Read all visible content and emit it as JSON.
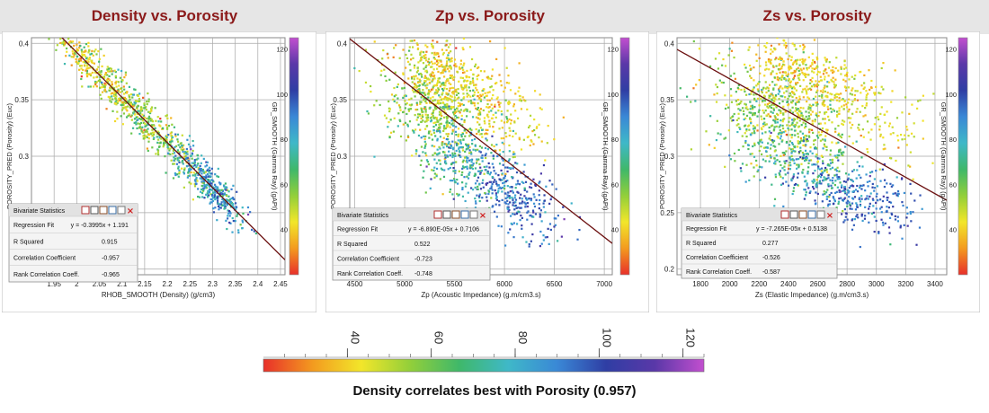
{
  "colors": {
    "regression_line": "#6b0f0f",
    "grid": "#9a9a9a",
    "title": "#8b1a1a"
  },
  "colorbar": {
    "stops": [
      "#e8302a",
      "#f39a1f",
      "#f2e62a",
      "#92cf3a",
      "#3fb86a",
      "#3fb8c8",
      "#3a88d6",
      "#2f3ea4",
      "#5a38a8",
      "#c24fcf"
    ],
    "ticks": [
      40,
      60,
      80,
      100,
      120
    ],
    "min": 20,
    "max": 125
  },
  "stats_toolbar_icons": [
    "print-icon",
    "bar-chart-icon",
    "fit-icon",
    "scatter-icon",
    "copy-icon",
    "close-icon"
  ],
  "footer_caption": "Density correlates best with Porosity (0.957)",
  "panels": [
    {
      "title": "Density vs. Porosity",
      "xlabel": "RHOB_SMOOTH (Density) (g/cm3)",
      "ylabel": "POROSITY_PRED (Porosity) (Euc)",
      "cblabel": "GR_SMOOTH (Gamma Ray) (gAPI)",
      "stats": {
        "header": "Bivariate Statistics",
        "rows": [
          {
            "label": "Regression Fit",
            "value": "y = -0.3995x + 1.191"
          },
          {
            "label": "R Squared",
            "value": "0.915"
          },
          {
            "label": "Correlation Coefficient",
            "value": "-0.957"
          },
          {
            "label": "Rank Correlation Coeff.",
            "value": "-0.965"
          }
        ]
      }
    },
    {
      "title": "Zp vs. Porosity",
      "xlabel": "Zp (Acoustic Impedance) (g.m/cm3.s)",
      "ylabel": "POROSITY_PRED (Porosity) (Euc)",
      "cblabel": "GR_SMOOTH (Gamma Ray) (gAPI)",
      "stats": {
        "header": "Bivariate Statistics",
        "rows": [
          {
            "label": "Regression Fit",
            "value": "y = -6.890E-05x + 0.7106"
          },
          {
            "label": "R Squared",
            "value": "0.522"
          },
          {
            "label": "Correlation Coefficient",
            "value": "-0.723"
          },
          {
            "label": "Rank Correlation Coeff.",
            "value": "-0.748"
          }
        ]
      }
    },
    {
      "title": "Zs vs. Porosity",
      "xlabel": "Zs (Elastic Impedance) (g.m/cm3.s)",
      "ylabel": "POROSITY_PRED (Porosity) (Euc)",
      "cblabel": "GR_SMOOTH (Gamma Ray) (gAPI)",
      "stats": {
        "header": "Bivariate Statistics",
        "rows": [
          {
            "label": "Regression Fit",
            "value": "y = -7.265E-05x + 0.5138"
          },
          {
            "label": "R Squared",
            "value": "0.277"
          },
          {
            "label": "Correlation Coefficient",
            "value": "-0.526"
          },
          {
            "label": "Rank Correlation Coeff.",
            "value": "-0.587"
          }
        ]
      }
    }
  ],
  "chart_data": [
    {
      "type": "scatter",
      "title": "Density vs. Porosity",
      "xlabel": "RHOB_SMOOTH (Density) (g/cm3)",
      "ylabel": "POROSITY_PRED (Porosity) (Euc)",
      "xlim": [
        1.9,
        2.46
      ],
      "ylim": [
        0.195,
        0.405
      ],
      "xticks": [
        1.95,
        2.0,
        2.05,
        2.1,
        2.15,
        2.2,
        2.25,
        2.3,
        2.35,
        2.4,
        2.45
      ],
      "xtick_labels": [
        "1.95",
        "2",
        "2.05",
        "2.1",
        "2.15",
        "2.2",
        "2.25",
        "2.3",
        "2.35",
        "2.4",
        "2.45"
      ],
      "yticks": [
        0.2,
        0.25,
        0.3,
        0.35,
        0.4
      ],
      "ytick_labels": [
        "0.2",
        "0.25",
        "0.3",
        "0.35",
        "0.4"
      ],
      "color_by": "GR_SMOOTH (Gamma Ray) (gAPI)",
      "color_range": [
        20,
        125
      ],
      "colorbar_ticks": [
        40,
        60,
        80,
        100,
        120
      ],
      "regression": {
        "slope": -0.3995,
        "intercept": 1.191
      },
      "point_clouds": [
        {
          "x_mean": 2.14,
          "x_sd": 0.08,
          "y_sd": 0.011,
          "gr_mean": 55,
          "gr_sd": 12,
          "n": 600
        },
        {
          "x_mean": 2.3,
          "x_sd": 0.04,
          "y_sd": 0.009,
          "gr_mean": 85,
          "gr_sd": 10,
          "n": 350
        },
        {
          "x_mean": 2.03,
          "x_sd": 0.05,
          "y_sd": 0.008,
          "gr_mean": 40,
          "gr_sd": 6,
          "n": 150
        }
      ],
      "r_squared": 0.915,
      "correlation": -0.957,
      "rank_correlation": -0.965
    },
    {
      "type": "scatter",
      "title": "Zp vs. Porosity",
      "xlabel": "Zp (Acoustic Impedance) (g.m/cm3.s)",
      "ylabel": "POROSITY_PRED (Porosity) (Euc)",
      "xlim": [
        4450,
        7080
      ],
      "ylim": [
        0.195,
        0.405
      ],
      "xticks": [
        4500,
        5000,
        5500,
        6000,
        6500,
        7000
      ],
      "xtick_labels": [
        "4500",
        "5000",
        "5500",
        "6000",
        "6500",
        "7000"
      ],
      "yticks": [
        0.2,
        0.25,
        0.3,
        0.35,
        0.4
      ],
      "ytick_labels": [
        "0.2",
        "0.25",
        "0.3",
        "0.35",
        "0.4"
      ],
      "color_by": "GR_SMOOTH (Gamma Ray) (gAPI)",
      "color_range": [
        20,
        125
      ],
      "colorbar_ticks": [
        40,
        60,
        80,
        100,
        120
      ],
      "regression": {
        "slope": -6.89e-05,
        "intercept": 0.7106
      },
      "point_clouds": [
        {
          "x_mean": 5300,
          "x_sd": 260,
          "y_mean": 0.345,
          "y_sd": 0.025,
          "gr_mean": 55,
          "gr_sd": 10,
          "n": 600
        },
        {
          "x_mean": 5400,
          "x_sd": 250,
          "y_mean": 0.375,
          "y_sd": 0.015,
          "gr_mean": 40,
          "gr_sd": 6,
          "n": 250
        },
        {
          "x_mean": 5900,
          "x_sd": 280,
          "y_mean": 0.34,
          "y_sd": 0.02,
          "gr_mean": 42,
          "gr_sd": 6,
          "n": 200
        },
        {
          "x_mean": 6100,
          "x_sd": 250,
          "y_mean": 0.265,
          "y_sd": 0.015,
          "gr_mean": 95,
          "gr_sd": 8,
          "n": 300
        },
        {
          "x_mean": 5600,
          "x_sd": 250,
          "y_mean": 0.295,
          "y_sd": 0.018,
          "gr_mean": 75,
          "gr_sd": 8,
          "n": 250
        }
      ],
      "r_squared": 0.522,
      "correlation": -0.723,
      "rank_correlation": -0.748
    },
    {
      "type": "scatter",
      "title": "Zs vs. Porosity",
      "xlabel": "Zs (Elastic Impedance) (g.m/cm3.s)",
      "ylabel": "POROSITY_PRED (Porosity) (Euc)",
      "xlim": [
        1640,
        3480
      ],
      "ylim": [
        0.195,
        0.405
      ],
      "xticks": [
        1800,
        2000,
        2200,
        2400,
        2600,
        2800,
        3000,
        3200,
        3400
      ],
      "xtick_labels": [
        "1800",
        "2000",
        "2200",
        "2400",
        "2600",
        "2800",
        "3000",
        "3200",
        "3400"
      ],
      "yticks": [
        0.2,
        0.25,
        0.3,
        0.35,
        0.4
      ],
      "ytick_labels": [
        "0.2",
        "0.25",
        "0.3",
        "0.35",
        "0.4"
      ],
      "color_by": "GR_SMOOTH (Gamma Ray) (gAPI)",
      "color_range": [
        20,
        125
      ],
      "colorbar_ticks": [
        40,
        60,
        80,
        100,
        120
      ],
      "regression": {
        "slope": -7.265e-05,
        "intercept": 0.5138
      },
      "point_clouds": [
        {
          "x_mean": 2350,
          "x_sd": 220,
          "y_mean": 0.335,
          "y_sd": 0.025,
          "gr_mean": 55,
          "gr_sd": 10,
          "n": 600
        },
        {
          "x_mean": 2500,
          "x_sd": 200,
          "y_mean": 0.375,
          "y_sd": 0.015,
          "gr_mean": 40,
          "gr_sd": 6,
          "n": 300
        },
        {
          "x_mean": 2850,
          "x_sd": 250,
          "y_mean": 0.34,
          "y_sd": 0.02,
          "gr_mean": 45,
          "gr_sd": 6,
          "n": 200
        },
        {
          "x_mean": 2850,
          "x_sd": 220,
          "y_mean": 0.265,
          "y_sd": 0.015,
          "gr_mean": 95,
          "gr_sd": 8,
          "n": 300
        },
        {
          "x_mean": 2500,
          "x_sd": 220,
          "y_mean": 0.295,
          "y_sd": 0.018,
          "gr_mean": 75,
          "gr_sd": 8,
          "n": 250
        }
      ],
      "r_squared": 0.277,
      "correlation": -0.526,
      "rank_correlation": -0.587
    }
  ]
}
